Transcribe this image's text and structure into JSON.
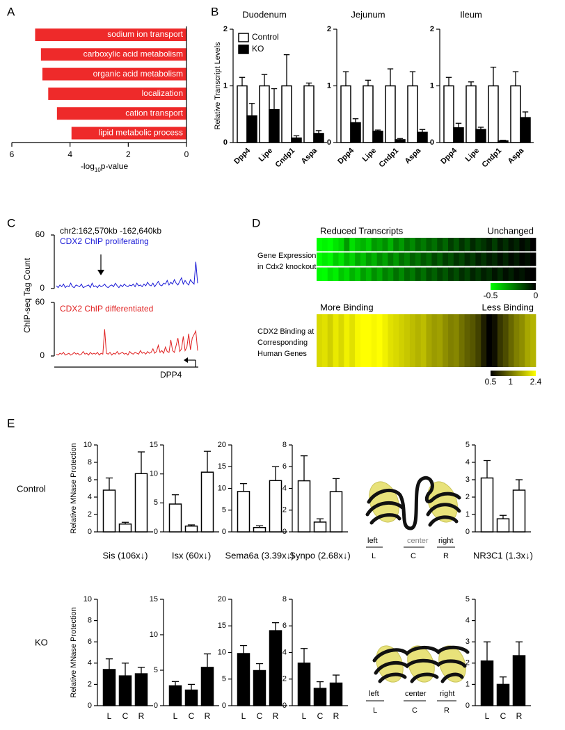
{
  "panel_labels": [
    "A",
    "B",
    "C",
    "D",
    "E"
  ],
  "row_labels": [
    "Control",
    "KO"
  ],
  "diagram": {
    "positions": [
      "left",
      "center",
      "right"
    ],
    "letters": [
      "L",
      "C",
      "R"
    ]
  },
  "chart_data": [
    {
      "type": "barh",
      "categories": [
        "sodium ion transport",
        "carboxylic acid metabolism",
        "organic acid metabolism",
        "localization",
        "cation transport",
        "lipid metabolic process"
      ],
      "values": [
        5.2,
        5.0,
        4.95,
        4.75,
        4.45,
        3.95
      ],
      "color": "#ee2a2a",
      "xlim": [
        6,
        0
      ],
      "xticks": [
        6,
        4,
        2,
        0
      ],
      "xlabel": [
        "-log",
        "10",
        "p-value"
      ]
    },
    {
      "type": "bar",
      "title": "Duodenum",
      "categories": [
        "Dpp4",
        "Lipe",
        "Cndp1",
        "Aspa"
      ],
      "ylim": [
        0,
        2
      ],
      "yticks": [
        0,
        1,
        2
      ],
      "ylabel": "Relative Transcript Levels",
      "legend": "upper left",
      "series": [
        {
          "name": "Control",
          "color": "#ffffff",
          "values": [
            1,
            1,
            1,
            1
          ],
          "errors": [
            0.15,
            0.2,
            0.55,
            0.05
          ]
        },
        {
          "name": "KO",
          "color": "#000000",
          "values": [
            0.47,
            0.58,
            0.08,
            0.16
          ],
          "errors": [
            0.22,
            0.37,
            0.04,
            0.05
          ]
        }
      ]
    },
    {
      "type": "bar",
      "title": "Jejunum",
      "categories": [
        "Dpp4",
        "Lipe",
        "Cndp1",
        "Aspa"
      ],
      "ylim": [
        0,
        2
      ],
      "yticks": [
        0,
        1,
        2
      ],
      "series": [
        {
          "name": "Control",
          "color": "#ffffff",
          "values": [
            1,
            1,
            1,
            1
          ],
          "errors": [
            0.25,
            0.1,
            0.3,
            0.25
          ]
        },
        {
          "name": "KO",
          "color": "#000000",
          "values": [
            0.35,
            0.2,
            0.05,
            0.18
          ],
          "errors": [
            0.07,
            0.02,
            0.02,
            0.05
          ]
        }
      ]
    },
    {
      "type": "bar",
      "title": "Ileum",
      "categories": [
        "Dpp4",
        "Lipe",
        "Cndp1",
        "Aspa"
      ],
      "ylim": [
        0,
        2
      ],
      "yticks": [
        0,
        1,
        2
      ],
      "series": [
        {
          "name": "Control",
          "color": "#ffffff",
          "values": [
            1,
            1,
            1,
            1
          ],
          "errors": [
            0.15,
            0.07,
            0.33,
            0.25
          ]
        },
        {
          "name": "KO",
          "color": "#000000",
          "values": [
            0.26,
            0.23,
            0.03,
            0.44
          ],
          "errors": [
            0.08,
            0.04,
            0.01,
            0.1
          ]
        }
      ]
    },
    {
      "type": "area",
      "annotation": "chr2:162,570kb -162,640kb",
      "title": "CDX2 ChIP proliferating",
      "ylabel": "ChIP-seq Tag Count",
      "color": "#1a1ad6",
      "ylim": [
        0,
        60
      ],
      "yticks": [
        0,
        60
      ],
      "values": [
        3,
        1,
        4,
        2,
        5,
        1,
        3,
        2,
        6,
        2,
        1,
        4,
        3,
        2,
        5,
        1,
        2,
        3,
        4,
        1,
        6,
        2,
        3,
        1,
        4,
        2,
        3,
        5,
        2,
        1,
        3,
        4,
        2,
        6,
        3,
        1,
        4,
        2,
        5,
        3,
        2,
        4,
        3,
        5,
        2,
        6,
        3,
        4,
        2,
        5,
        3,
        7,
        4,
        3,
        6,
        2,
        5,
        8,
        4,
        3,
        6,
        5,
        9,
        4,
        7,
        5,
        10,
        6,
        4,
        8,
        12,
        5,
        9,
        6,
        4,
        10,
        7,
        5,
        30,
        6
      ]
    },
    {
      "type": "area",
      "title": "CDX2 ChIP differentiated",
      "gene": "DPP4",
      "color": "#e02020",
      "ylim": [
        0,
        60
      ],
      "yticks": [
        0,
        60
      ],
      "values": [
        2,
        1,
        3,
        2,
        4,
        1,
        2,
        3,
        1,
        2,
        4,
        2,
        3,
        1,
        2,
        5,
        2,
        3,
        1,
        4,
        2,
        3,
        2,
        4,
        1,
        3,
        2,
        30,
        3,
        2,
        4,
        1,
        3,
        2,
        5,
        2,
        3,
        4,
        2,
        3,
        1,
        5,
        3,
        2,
        4,
        3,
        2,
        6,
        3,
        4,
        2,
        5,
        3,
        4,
        8,
        3,
        5,
        12,
        4,
        6,
        3,
        10,
        5,
        4,
        18,
        6,
        4,
        12,
        20,
        5,
        8,
        22,
        6,
        10,
        25,
        7,
        20,
        24,
        28,
        6
      ]
    },
    {
      "type": "heatmap",
      "left_label": "Reduced Transcripts",
      "right_label": "Unchanged",
      "ylabel": [
        "Gene Expression",
        "in Cdx2 knockout"
      ],
      "colors": [
        "#00ff00",
        "#000000"
      ],
      "clim": [
        -0.5,
        0
      ],
      "cticks": [
        -0.5,
        0
      ],
      "rows": [
        [
          -0.5,
          -0.48,
          -0.5,
          -0.45,
          -0.42,
          -0.3,
          -0.44,
          -0.38,
          -0.35,
          -0.4,
          -0.3,
          -0.33,
          -0.28,
          -0.35,
          -0.25,
          -0.3,
          -0.22,
          -0.27,
          -0.2,
          -0.24,
          -0.18,
          -0.22,
          -0.15,
          -0.2,
          -0.12,
          -0.17,
          -0.1,
          -0.15,
          -0.08,
          -0.13,
          -0.1,
          -0.06,
          -0.12,
          -0.05,
          -0.09,
          -0.04,
          -0.07,
          -0.02,
          -0.05,
          0
        ],
        [
          -0.5,
          -0.46,
          -0.49,
          -0.4,
          -0.45,
          -0.36,
          -0.42,
          -0.33,
          -0.38,
          -0.3,
          -0.35,
          -0.27,
          -0.32,
          -0.24,
          -0.3,
          -0.22,
          -0.26,
          -0.19,
          -0.23,
          -0.17,
          -0.21,
          -0.14,
          -0.19,
          -0.12,
          -0.16,
          -0.1,
          -0.14,
          -0.08,
          -0.12,
          -0.06,
          -0.1,
          -0.05,
          -0.08,
          -0.03,
          -0.07,
          -0.02,
          -0.05,
          -0.01,
          -0.03,
          0
        ],
        [
          -0.49,
          -0.5,
          -0.44,
          -0.47,
          -0.39,
          -0.43,
          -0.35,
          -0.4,
          -0.31,
          -0.36,
          -0.28,
          -0.33,
          -0.25,
          -0.29,
          -0.22,
          -0.27,
          -0.2,
          -0.24,
          -0.17,
          -0.22,
          -0.15,
          -0.19,
          -0.13,
          -0.17,
          -0.11,
          -0.15,
          -0.09,
          -0.13,
          -0.07,
          -0.11,
          -0.06,
          -0.09,
          -0.04,
          -0.08,
          -0.03,
          -0.06,
          -0.02,
          -0.04,
          -0.01,
          0
        ]
      ]
    },
    {
      "type": "heatmap",
      "left_label": "More Binding",
      "right_label": "Less Binding",
      "ylabel": [
        "CDX2 Binding at",
        "Corresponding",
        "Human Genes"
      ],
      "colors": [
        "#000000",
        "#ffff00"
      ],
      "clim": [
        0.5,
        2.4
      ],
      "cticks": [
        0.5,
        1,
        2.4
      ],
      "log_scale": true,
      "rows": [
        [
          1.9,
          2.0,
          1.8,
          2.1,
          1.9,
          2.2,
          2.0,
          2.3,
          2.4,
          2.4,
          2.3,
          2.4,
          2.2,
          2.0,
          1.9,
          1.8,
          1.7,
          1.6,
          1.5,
          1.6,
          1.4,
          1.3,
          1.35,
          1.2,
          1.1,
          1.15,
          1.0,
          0.9,
          0.85,
          0.75,
          0.6,
          0.5,
          0.55,
          0.7,
          0.8,
          0.95,
          1.1,
          1.2,
          1.4,
          1.5
        ]
      ]
    },
    {
      "type": "bar",
      "title": "Sis (106x↓)",
      "ylabel": "Relative MNase Protection",
      "categories": [
        null,
        null,
        null
      ],
      "color": "#ffffff",
      "ylim": [
        0,
        10
      ],
      "yticks": [
        0,
        2,
        4,
        6,
        8,
        10
      ],
      "values": [
        4.8,
        0.9,
        6.7
      ],
      "errors": [
        1.4,
        0.2,
        2.5
      ]
    },
    {
      "type": "bar",
      "title": "Isx (60x↓)",
      "categories": [
        null,
        null,
        null
      ],
      "color": "#ffffff",
      "ylim": [
        0,
        15
      ],
      "yticks": [
        0,
        5,
        10,
        15
      ],
      "values": [
        4.8,
        1.0,
        10.3
      ],
      "errors": [
        1.6,
        0.2,
        3.6
      ]
    },
    {
      "type": "bar",
      "title": "Sema6a (3.39x↓)",
      "categories": [
        null,
        null,
        null
      ],
      "color": "#ffffff",
      "ylim": [
        0,
        20
      ],
      "yticks": [
        0,
        5,
        10,
        15,
        20
      ],
      "values": [
        9.3,
        1.0,
        11.8
      ],
      "errors": [
        1.8,
        0.4,
        3.2
      ]
    },
    {
      "type": "bar",
      "title": "Synpo (2.68x↓)",
      "categories": [
        null,
        null,
        null
      ],
      "color": "#ffffff",
      "ylim": [
        0,
        8
      ],
      "yticks": [
        0,
        2,
        4,
        6,
        8
      ],
      "values": [
        4.7,
        0.9,
        3.7
      ],
      "errors": [
        2.3,
        0.3,
        1.2
      ]
    },
    {
      "type": "bar",
      "title": "NR3C1 (1.3x↓)",
      "categories": [
        null,
        null,
        null
      ],
      "color": "#ffffff",
      "ylim": [
        0,
        5
      ],
      "yticks": [
        0,
        1,
        2,
        3,
        4,
        5
      ],
      "values": [
        3.1,
        0.75,
        2.4
      ],
      "errors": [
        1.0,
        0.2,
        0.6
      ]
    },
    {
      "type": "bar",
      "ylabel": "Relative MNase Protection",
      "categories": [
        "L",
        "C",
        "R"
      ],
      "color": "#000000",
      "ylim": [
        0,
        10
      ],
      "yticks": [
        0,
        2,
        4,
        6,
        8,
        10
      ],
      "values": [
        3.4,
        2.8,
        3.0
      ],
      "errors": [
        1.0,
        1.2,
        0.6
      ]
    },
    {
      "type": "bar",
      "categories": [
        "L",
        "C",
        "R"
      ],
      "color": "#000000",
      "ylim": [
        0,
        15
      ],
      "yticks": [
        0,
        5,
        10,
        15
      ],
      "values": [
        2.8,
        2.2,
        5.4
      ],
      "errors": [
        0.6,
        0.8,
        1.9
      ]
    },
    {
      "type": "bar",
      "categories": [
        "L",
        "C",
        "R"
      ],
      "color": "#000000",
      "ylim": [
        0,
        20
      ],
      "yticks": [
        0,
        5,
        10,
        15,
        20
      ],
      "values": [
        9.8,
        6.6,
        14.1
      ],
      "errors": [
        1.5,
        1.3,
        1.5
      ]
    },
    {
      "type": "bar",
      "categories": [
        "L",
        "C",
        "R"
      ],
      "color": "#000000",
      "ylim": [
        0,
        8
      ],
      "yticks": [
        0,
        2,
        4,
        6,
        8
      ],
      "values": [
        3.2,
        1.3,
        1.7
      ],
      "errors": [
        1.1,
        0.5,
        0.6
      ]
    },
    {
      "type": "bar",
      "categories": [
        "L",
        "C",
        "R"
      ],
      "color": "#000000",
      "ylim": [
        0,
        5
      ],
      "yticks": [
        0,
        1,
        2,
        3,
        4,
        5
      ],
      "values": [
        2.1,
        1.0,
        2.35
      ],
      "errors": [
        0.9,
        0.35,
        0.65
      ]
    }
  ]
}
